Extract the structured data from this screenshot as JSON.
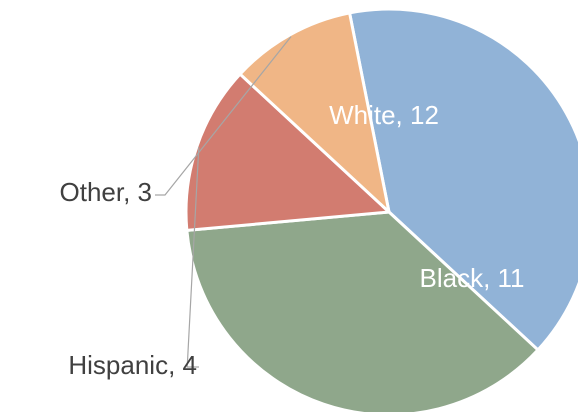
{
  "chart_data": {
    "type": "pie",
    "title": "",
    "categories": [
      "White",
      "Black",
      "Hispanic",
      "Other"
    ],
    "values": [
      12,
      11,
      4,
      3
    ],
    "labels": [
      "White, 12",
      "Black, 11",
      "Hispanic, 4",
      "Other, 3"
    ],
    "colors": [
      "#91b3d7",
      "#8fa78b",
      "#d27c70",
      "#f0b686"
    ],
    "label_colors": [
      "#ffffff",
      "#ffffff",
      "#404040",
      "#404040"
    ],
    "legend": "none"
  }
}
